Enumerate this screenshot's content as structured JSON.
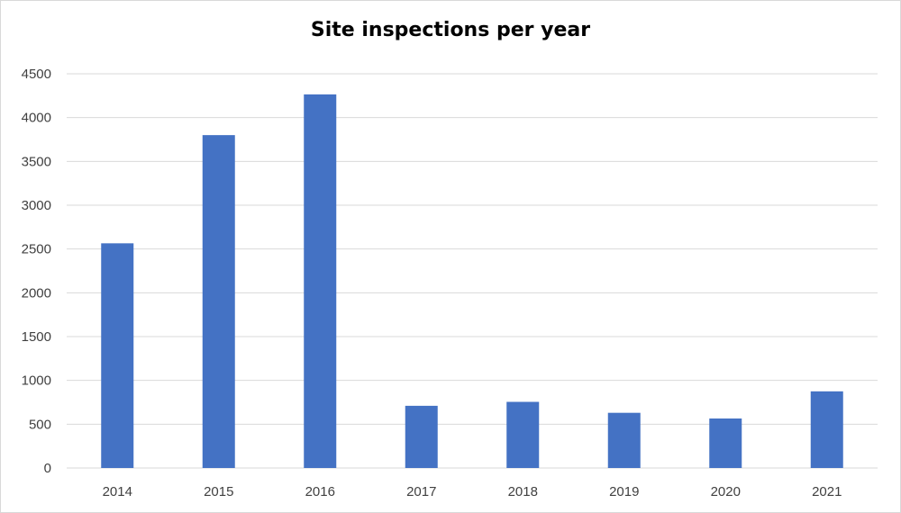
{
  "chart_data": {
    "type": "bar",
    "title": "Site inspections per year",
    "xlabel": "",
    "ylabel": "",
    "categories": [
      "2014",
      "2015",
      "2016",
      "2017",
      "2018",
      "2019",
      "2020",
      "2021"
    ],
    "series": [
      {
        "values": [
          2565,
          3800,
          4265,
          710,
          755,
          630,
          565,
          875
        ],
        "color": "#4472c4"
      }
    ],
    "ylim": [
      0,
      4500
    ],
    "yticks": [
      "0",
      "500",
      "1000",
      "1500",
      "2000",
      "2500",
      "3000",
      "3500",
      "4000",
      "4500"
    ],
    "grid": true,
    "legend": "none",
    "colors": {
      "bar": "#4472c4",
      "grid": "#d9d9d9",
      "tick_text": "#404040"
    }
  }
}
